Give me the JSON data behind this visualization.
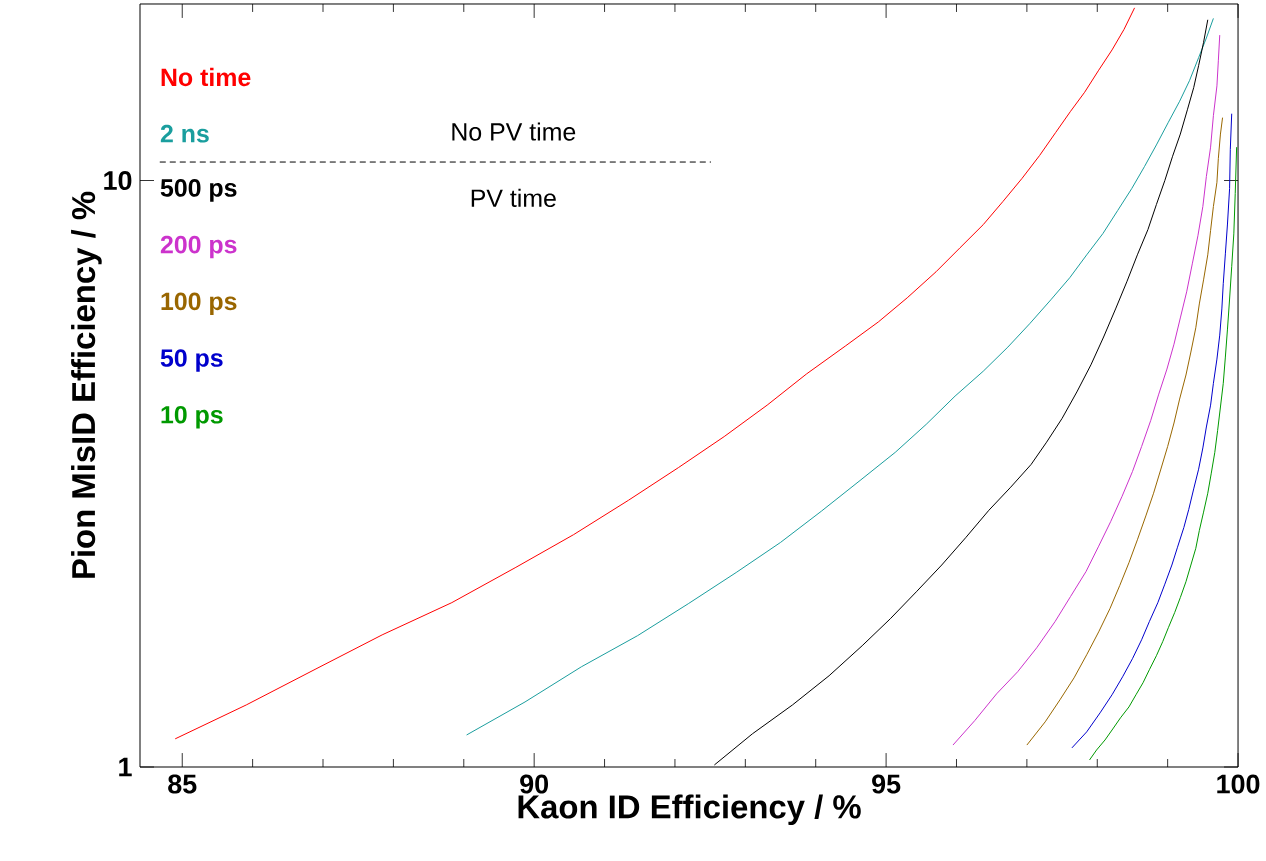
{
  "chart_data": {
    "type": "line",
    "xlabel": "Kaon ID Efficiency / %",
    "ylabel": "Pion MisID Efficiency / %",
    "xlim": [
      84.4,
      100
    ],
    "ylim": [
      1,
      20
    ],
    "xticks": [
      85,
      90,
      95,
      100
    ],
    "yticks": [
      1,
      10
    ],
    "log": "y",
    "legend": "top left",
    "marker": "none",
    "line_style": "solid",
    "annotations": [
      "No PV time",
      "PV time"
    ],
    "series": [
      {
        "name": "No time",
        "color": "#ff0000",
        "x": [
          84.9,
          85.91,
          86.9,
          87.84,
          88.83,
          89.74,
          90.56,
          91.34,
          92.05,
          92.7,
          93.31,
          93.87,
          94.42,
          94.89,
          95.3,
          95.71,
          96.05,
          96.38,
          96.66,
          96.93,
          97.18,
          97.41,
          97.62,
          97.82,
          98.02,
          98.21,
          98.38,
          98.53
        ],
        "values": [
          1.117,
          1.276,
          1.47,
          1.68,
          1.907,
          2.19,
          2.49,
          2.85,
          3.24,
          3.66,
          4.14,
          4.68,
          5.22,
          5.74,
          6.31,
          6.99,
          7.68,
          8.41,
          9.21,
          10.08,
          11.03,
          12.08,
          13.12,
          14.14,
          15.42,
          16.7,
          18.1,
          19.7
        ]
      },
      {
        "name": "2 ns",
        "color": "#1a9e9e",
        "x": [
          89.04,
          89.87,
          90.67,
          91.47,
          92.19,
          92.87,
          93.5,
          94.08,
          94.63,
          95.13,
          95.57,
          95.98,
          96.38,
          96.73,
          97.04,
          97.34,
          97.61,
          97.85,
          98.08,
          98.29,
          98.49,
          98.67,
          98.84,
          99.01,
          99.17,
          99.31,
          99.44,
          99.55,
          99.65
        ],
        "values": [
          1.134,
          1.291,
          1.482,
          1.675,
          1.899,
          2.146,
          2.415,
          2.73,
          3.08,
          3.44,
          3.84,
          4.29,
          4.73,
          5.2,
          5.7,
          6.26,
          6.83,
          7.47,
          8.12,
          8.89,
          9.69,
          10.56,
          11.5,
          12.57,
          13.65,
          14.8,
          16.2,
          17.5,
          18.9
        ]
      },
      {
        "name": "500 ps",
        "color": "#000000",
        "x": [
          92.56,
          93.1,
          93.67,
          94.19,
          94.66,
          95.06,
          95.43,
          95.79,
          96.13,
          96.46,
          96.77,
          97.06,
          97.28,
          97.5,
          97.71,
          97.91,
          98.09,
          98.26,
          98.42,
          98.57,
          98.72,
          98.84,
          98.96,
          99.07,
          99.18,
          99.28,
          99.37,
          99.44,
          99.51,
          99.57
        ],
        "values": [
          1.008,
          1.139,
          1.276,
          1.431,
          1.61,
          1.79,
          1.99,
          2.21,
          2.46,
          2.74,
          3.0,
          3.28,
          3.58,
          3.93,
          4.36,
          4.85,
          5.41,
          6.04,
          6.72,
          7.47,
          8.25,
          9.1,
          10.0,
          11.0,
          12.0,
          13.2,
          14.4,
          15.7,
          17.2,
          18.8
        ]
      },
      {
        "name": "200 ps",
        "color": "#cc33cc",
        "x": [
          95.95,
          96.26,
          96.57,
          96.87,
          97.14,
          97.4,
          97.62,
          97.84,
          98.02,
          98.19,
          98.35,
          98.5,
          98.63,
          98.76,
          98.87,
          98.99,
          99.09,
          99.18,
          99.27,
          99.35,
          99.43,
          99.5,
          99.55,
          99.61,
          99.65,
          99.7,
          99.72,
          99.74
        ],
        "values": [
          1.09,
          1.2,
          1.333,
          1.454,
          1.597,
          1.77,
          1.953,
          2.154,
          2.38,
          2.62,
          2.89,
          3.19,
          3.52,
          3.9,
          4.31,
          4.77,
          5.26,
          5.83,
          6.46,
          7.21,
          8.05,
          9.03,
          10.16,
          11.4,
          12.9,
          14.5,
          16.0,
          17.7
        ]
      },
      {
        "name": "100 ps",
        "color": "#996600",
        "x": [
          97.0,
          97.26,
          97.47,
          97.67,
          97.85,
          98.02,
          98.18,
          98.32,
          98.45,
          98.57,
          98.69,
          98.8,
          98.9,
          99.0,
          99.09,
          99.17,
          99.26,
          99.33,
          99.4,
          99.45,
          99.51,
          99.57,
          99.61,
          99.65,
          99.7,
          99.72,
          99.75,
          99.78
        ],
        "values": [
          1.09,
          1.194,
          1.302,
          1.419,
          1.554,
          1.7,
          1.862,
          2.04,
          2.23,
          2.44,
          2.68,
          2.93,
          3.21,
          3.52,
          3.86,
          4.24,
          4.66,
          5.1,
          5.61,
          6.16,
          6.77,
          7.47,
          8.22,
          9.03,
          9.93,
          10.9,
          12.0,
          12.8
        ]
      },
      {
        "name": "50 ps",
        "color": "#0000cc",
        "x": [
          97.64,
          97.85,
          98.04,
          98.21,
          98.36,
          98.5,
          98.63,
          98.74,
          98.86,
          98.96,
          99.06,
          99.14,
          99.23,
          99.3,
          99.37,
          99.44,
          99.5,
          99.55,
          99.61,
          99.65,
          99.7,
          99.74,
          99.77,
          99.79,
          99.82,
          99.85,
          99.88,
          99.89,
          99.91
        ],
        "values": [
          1.078,
          1.148,
          1.237,
          1.328,
          1.425,
          1.53,
          1.648,
          1.77,
          1.906,
          2.05,
          2.21,
          2.37,
          2.56,
          2.75,
          2.98,
          3.22,
          3.5,
          3.8,
          4.14,
          4.51,
          4.96,
          5.45,
          6.04,
          6.67,
          7.5,
          8.43,
          9.69,
          11.3,
          13.0
        ]
      },
      {
        "name": "10 ps",
        "color": "#009900",
        "x": [
          97.89,
          97.99,
          98.11,
          98.22,
          98.33,
          98.45,
          98.55,
          98.65,
          98.74,
          98.84,
          98.93,
          99.01,
          99.1,
          99.18,
          99.26,
          99.33,
          99.4,
          99.45,
          99.51,
          99.57,
          99.62,
          99.67,
          99.71,
          99.75,
          99.79,
          99.82,
          99.85,
          99.88,
          99.91,
          99.94,
          99.96,
          99.98
        ],
        "values": [
          1.028,
          1.069,
          1.112,
          1.161,
          1.213,
          1.266,
          1.328,
          1.392,
          1.465,
          1.548,
          1.636,
          1.728,
          1.834,
          1.945,
          2.07,
          2.21,
          2.36,
          2.53,
          2.72,
          2.93,
          3.17,
          3.44,
          3.75,
          4.11,
          4.51,
          5.0,
          5.58,
          6.28,
          7.13,
          8.11,
          9.5,
          11.4
        ]
      }
    ]
  }
}
